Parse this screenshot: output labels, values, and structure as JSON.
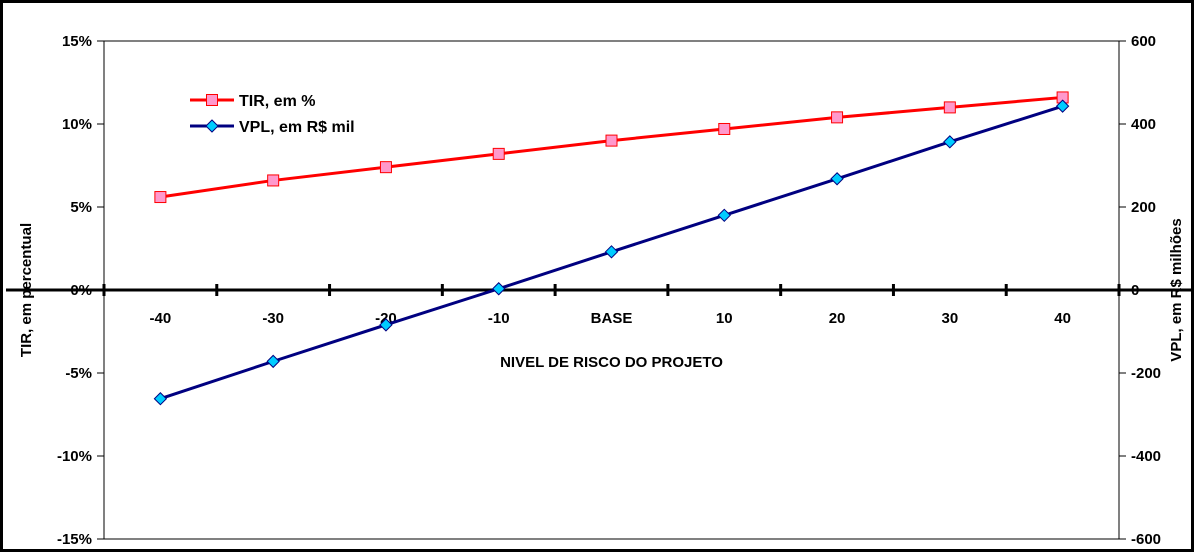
{
  "chart_data": {
    "type": "line",
    "categories": [
      "-40",
      "-30",
      "-20",
      "-10",
      "BASE",
      "10",
      "20",
      "30",
      "40"
    ],
    "xlabel": "NIVEL DE RISCO DO PROJETO",
    "ylabel": "TIR, em percentual",
    "y2label": "VPL, em R$ milhões",
    "ylim": [
      -15,
      15
    ],
    "y2lim": [
      -600,
      600
    ],
    "yticks": [
      "15%",
      "10%",
      "5%",
      "0%",
      "-5%",
      "-10%",
      "-15%"
    ],
    "y2ticks": [
      "600",
      "400",
      "200",
      "0",
      "-200",
      "-400",
      "-600"
    ],
    "grid": false,
    "legend": "top-left",
    "series": [
      {
        "name": "TIR, em %",
        "axis": "left",
        "color": "#ff0000",
        "marker_fill": "#ff99cc",
        "marker": "square",
        "values": [
          5.6,
          6.6,
          7.4,
          8.2,
          9.0,
          9.7,
          10.4,
          11.0,
          11.6
        ]
      },
      {
        "name": "VPL, em R$ mil",
        "axis": "right",
        "color": "#000080",
        "marker_fill": "#00ccff",
        "marker": "diamond",
        "values": [
          -262,
          -172,
          -84,
          3,
          92,
          180,
          268,
          357,
          443
        ]
      }
    ]
  }
}
